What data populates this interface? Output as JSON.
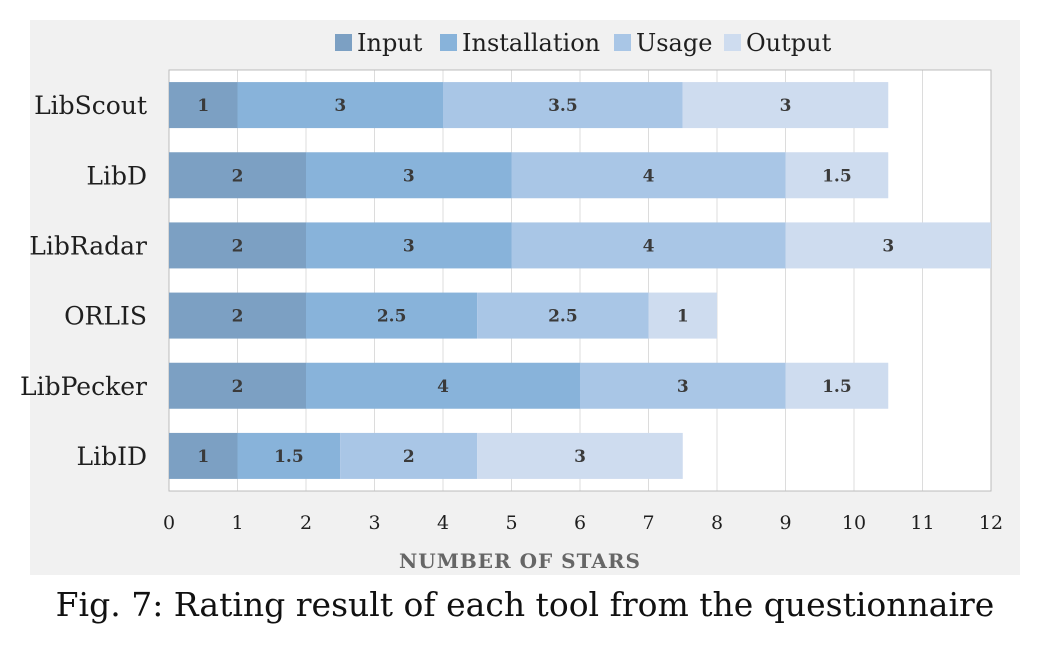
{
  "chart_data": {
    "type": "bar",
    "orientation": "horizontal",
    "stacked": true,
    "categories": [
      "LibScout",
      "LibD",
      "LibRadar",
      "ORLIS",
      "LibPecker",
      "LibID"
    ],
    "series": [
      {
        "name": "Input",
        "values": [
          1,
          2,
          2,
          2,
          2,
          1
        ]
      },
      {
        "name": "Installation",
        "values": [
          3,
          3,
          3,
          2.5,
          4,
          1.5
        ]
      },
      {
        "name": "Usage",
        "values": [
          3.5,
          4,
          4,
          2.5,
          3,
          2
        ]
      },
      {
        "name": "Output",
        "values": [
          3,
          1.5,
          3,
          1,
          1.5,
          3
        ]
      }
    ],
    "colors": [
      "#7ca0c3",
      "#88b3da",
      "#a9c6e6",
      "#cedcef"
    ],
    "xlabel": "NUMBER OF STARS",
    "xlim": [
      0,
      12
    ],
    "xticks": [
      0,
      1,
      2,
      3,
      4,
      5,
      6,
      7,
      8,
      9,
      10,
      11,
      12
    ],
    "grid": "vertical",
    "legend": "top"
  },
  "caption": "Fig. 7: Rating result of each tool from the questionnaire"
}
